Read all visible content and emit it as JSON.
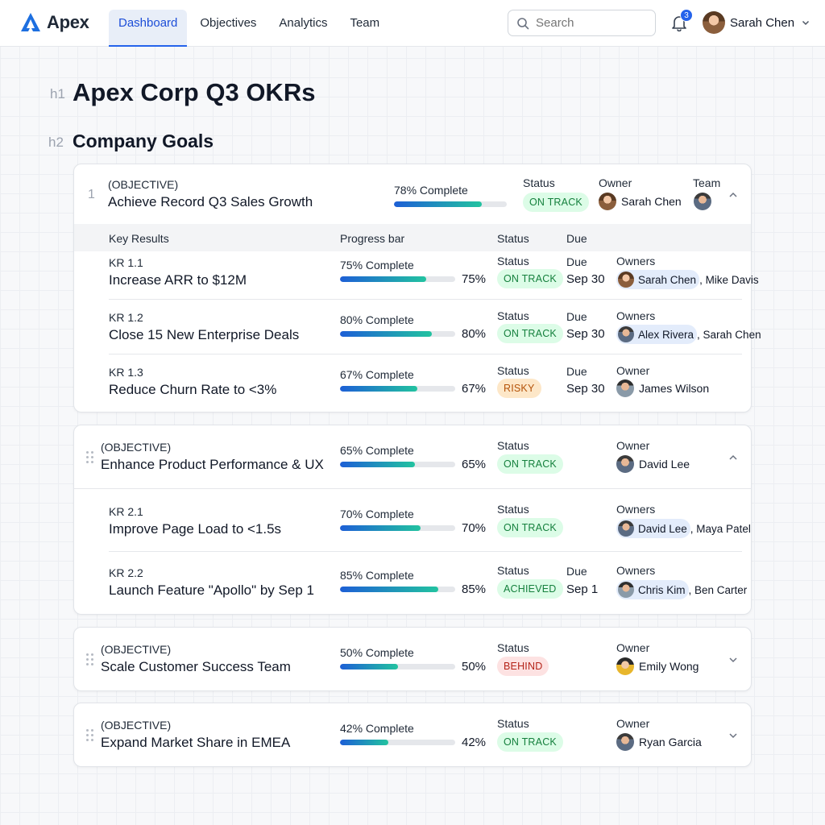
{
  "app": {
    "name": "Apex"
  },
  "nav": {
    "items": [
      "Dashboard",
      "Objectives",
      "Analytics",
      "Team"
    ],
    "active": "Dashboard"
  },
  "search": {
    "placeholder": "Search"
  },
  "notifications": {
    "count": "3"
  },
  "user": {
    "name": "Sarah Chen"
  },
  "page": {
    "h1_tag": "h1",
    "title": "Apex Corp Q3 OKRs",
    "h2_tag": "h2",
    "section": "Company Goals"
  },
  "labels": {
    "objective": "(OBJECTIVE)",
    "status": "Status",
    "owner": "Owner",
    "owners": "Owners",
    "team": "Team",
    "due": "Due",
    "key_results": "Key Results",
    "progress_bar": "Progress bar"
  },
  "colors": {
    "accent": "#2563eb",
    "on_track": "#15803d",
    "risky": "#b45309",
    "behind": "#b42318"
  },
  "objectives": [
    {
      "index": "1",
      "title": "Achieve Record Q3 Sales Growth",
      "progress_label": "78% Complete",
      "progress": 78,
      "status": "ON TRACK",
      "owner": "Sarah Chen",
      "key_results": [
        {
          "id": "KR 1.1",
          "title": "Increase ARR to $12M",
          "progress_label": "75% Complete",
          "progress": 75,
          "pct": "75%",
          "status": "ON TRACK",
          "due": "Sep 30",
          "owners_label": "Owners",
          "owner_primary": "Sarah Chen",
          "owner_rest": ", Mike Davis"
        },
        {
          "id": "KR 1.2",
          "title": "Close 15 New Enterprise Deals",
          "progress_label": "80% Complete",
          "progress": 80,
          "pct": "80%",
          "status": "ON TRACK",
          "due": "Sep 30",
          "owners_label": "Owners",
          "owner_primary": "Alex Rivera",
          "owner_rest": ", Sarah Chen"
        },
        {
          "id": "KR 1.3",
          "title": "Reduce Churn Rate to <3%",
          "progress_label": "67% Complete",
          "progress": 67,
          "pct": "67%",
          "status": "RISKY",
          "due": "Sep 30",
          "owners_label": "Owner",
          "owner_primary": "James Wilson",
          "owner_rest": ""
        }
      ]
    },
    {
      "title": "Enhance Product Performance & UX",
      "progress_label": "65% Complete",
      "progress": 65,
      "pct": "65%",
      "status": "ON TRACK",
      "owner": "David Lee",
      "key_results": [
        {
          "id": "KR 2.1",
          "title": "Improve Page Load to <1.5s",
          "progress_label": "70% Complete",
          "progress": 70,
          "pct": "70%",
          "status": "ON TRACK",
          "owners_label": "Owners",
          "owner_primary": "David Lee",
          "owner_rest": ", Maya Patel"
        },
        {
          "id": "KR 2.2",
          "title": "Launch Feature \"Apollo\" by Sep 1",
          "progress_label": "85% Complete",
          "progress": 85,
          "pct": "85%",
          "status": "ACHIEVED",
          "due": "Sep 1",
          "owners_label": "Owners",
          "owner_primary": "Chris Kim",
          "owner_rest": ", Ben Carter"
        }
      ]
    },
    {
      "title": "Scale Customer Success Team",
      "progress_label": "50% Complete",
      "progress": 50,
      "pct": "50%",
      "status": "BEHIND",
      "owner": "Emily Wong"
    },
    {
      "title": "Expand Market Share in EMEA",
      "progress_label": "42% Complete",
      "progress": 42,
      "pct": "42%",
      "status": "ON TRACK",
      "owner": "Ryan Garcia"
    }
  ]
}
